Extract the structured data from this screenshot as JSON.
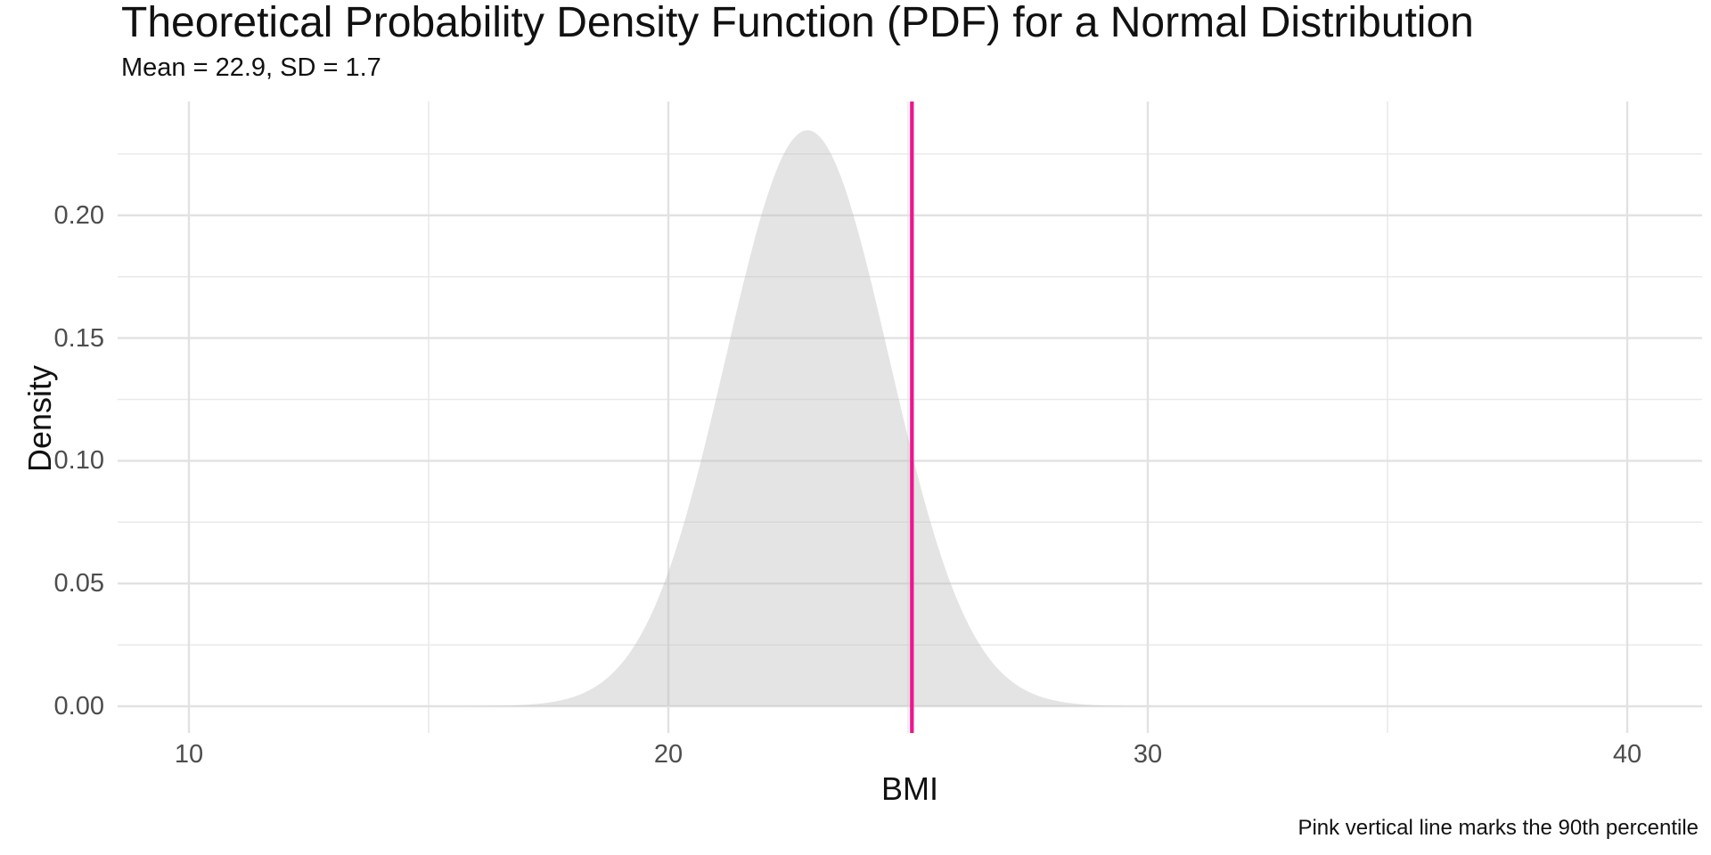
{
  "header": {
    "title": "Theoretical Probability Density Function (PDF) for a Normal Distribution",
    "subtitle": "Mean = 22.9, SD = 1.7"
  },
  "caption": "Pink vertical line marks the 90th percentile",
  "chart_data": {
    "type": "area",
    "title": "Theoretical Probability Density Function (PDF) for a Normal Distribution",
    "subtitle": "Mean = 22.9, SD = 1.7",
    "xlabel": "BMI",
    "ylabel": "Density",
    "caption": "Pink vertical line marks the 90th percentile",
    "distribution": {
      "name": "normal",
      "mean": 22.9,
      "sd": 1.7,
      "peak_density": 0.2347
    },
    "vline": {
      "x": 25.08,
      "meaning": "90th percentile",
      "color": "#EF168F",
      "width": 4.3
    },
    "x_axis": {
      "tick_values": [
        10,
        20,
        30,
        40
      ],
      "tick_labels": [
        "10",
        "20",
        "30",
        "40"
      ],
      "minor_values": [
        15,
        25,
        35
      ],
      "lim": [
        8.5,
        41.6
      ]
    },
    "y_axis": {
      "tick_values": [
        0,
        0.05,
        0.1,
        0.15,
        0.2
      ],
      "tick_labels": [
        "0.00",
        "0.05",
        "0.10",
        "0.15",
        "0.20"
      ],
      "minor_values": [
        0.025,
        0.075,
        0.125,
        0.175,
        0.225
      ],
      "lim": [
        -0.011,
        0.2465
      ]
    },
    "grid": true,
    "legend": "none",
    "colors": {
      "background": "#FFFFFF",
      "grid_major": "#E2E2E2",
      "grid_minor": "#E9E9E9",
      "area_fill": "#BEBEBE",
      "area_fill_opacity": 0.42,
      "vline": "#EF168F",
      "tick_label": "#4D4D4D",
      "text": "#111111"
    }
  }
}
